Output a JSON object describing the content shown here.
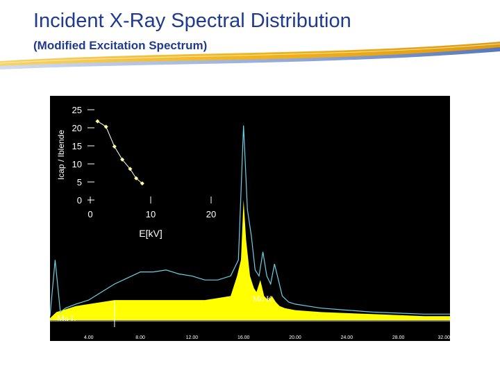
{
  "slide": {
    "title": "Incident X-Ray Spectral Distribution",
    "subtitle": "(Modified Excitation Spectrum)"
  },
  "colors": {
    "title": "#1f3a8f",
    "swoosh_gold": "#f2b31c",
    "swoosh_blue": "#3a5fb0",
    "background": "#000000",
    "spectrum_fill": "#ffff00",
    "spectrum_line": "#6ad3e8",
    "inset_series": "#ffff99"
  },
  "chart_data": [
    {
      "type": "line",
      "role": "inset",
      "title": "",
      "xlabel": "E[kV]",
      "ylabel": "Icap / Iblende",
      "xlim": [
        0,
        20
      ],
      "ylim": [
        0,
        25
      ],
      "xticks": [
        "0",
        "10",
        "20"
      ],
      "yticks": [
        "0",
        "5",
        "10",
        "15",
        "20",
        "25"
      ],
      "series": [
        {
          "x": [
            1.2,
            2.6,
            4.0,
            5.3,
            6.6,
            7.6,
            8.6
          ],
          "y": [
            21.8,
            20.3,
            14.8,
            11.2,
            8.6,
            6.0,
            4.6
          ]
        }
      ],
      "grid": false
    },
    {
      "type": "area",
      "role": "spectrum",
      "xlim": [
        1.0,
        32.0
      ],
      "xticks": [
        "4.00",
        "8.00",
        "12.00",
        "16.00",
        "20.00",
        "24.00",
        "28.00",
        "32.00"
      ],
      "annotations": [
        {
          "text": "Mo L",
          "x": 2.3
        },
        {
          "text": "Mo K",
          "x": 17.5
        }
      ],
      "marker_x": 6.0,
      "series": [
        {
          "style": "line",
          "x": [
            1.0,
            1.4,
            1.8,
            2.2,
            2.6,
            3.0,
            4.0,
            5.0,
            6.0,
            7.0,
            8.0,
            9.0,
            10.0,
            11.0,
            12.0,
            13.0,
            14.0,
            15.0,
            15.6,
            16.0,
            16.3,
            16.6,
            16.9,
            17.2,
            17.5,
            17.8,
            18.1,
            18.4,
            18.7,
            19.0,
            19.5,
            20.0,
            21.0,
            22.0,
            24.0,
            26.0,
            28.0,
            30.0,
            32.0
          ],
          "y": [
            0.02,
            0.3,
            0.04,
            0.06,
            0.07,
            0.08,
            0.1,
            0.14,
            0.18,
            0.21,
            0.24,
            0.24,
            0.25,
            0.23,
            0.22,
            0.2,
            0.2,
            0.22,
            0.3,
            0.97,
            0.55,
            0.42,
            0.25,
            0.22,
            0.34,
            0.22,
            0.18,
            0.28,
            0.2,
            0.12,
            0.09,
            0.08,
            0.07,
            0.06,
            0.05,
            0.04,
            0.035,
            0.03,
            0.03
          ]
        },
        {
          "style": "fill",
          "x": [
            1.0,
            1.5,
            2.0,
            3.0,
            4.0,
            5.0,
            6.0,
            7.0,
            8.0,
            9.0,
            10.0,
            11.0,
            12.0,
            13.0,
            14.0,
            15.0,
            15.5,
            15.8,
            16.0,
            16.2,
            16.5,
            16.8,
            17.0,
            17.3,
            17.6,
            17.9,
            18.2,
            18.5,
            18.8,
            19.2,
            20.0,
            21.0,
            22.0,
            24.0,
            26.0,
            28.0,
            30.0,
            32.0
          ],
          "y": [
            0.01,
            0.04,
            0.05,
            0.07,
            0.08,
            0.09,
            0.1,
            0.1,
            0.1,
            0.1,
            0.1,
            0.1,
            0.1,
            0.1,
            0.11,
            0.12,
            0.22,
            0.3,
            0.6,
            0.4,
            0.22,
            0.16,
            0.14,
            0.2,
            0.12,
            0.1,
            0.12,
            0.09,
            0.07,
            0.06,
            0.05,
            0.045,
            0.04,
            0.035,
            0.03,
            0.025,
            0.02,
            0.02
          ]
        }
      ]
    }
  ]
}
